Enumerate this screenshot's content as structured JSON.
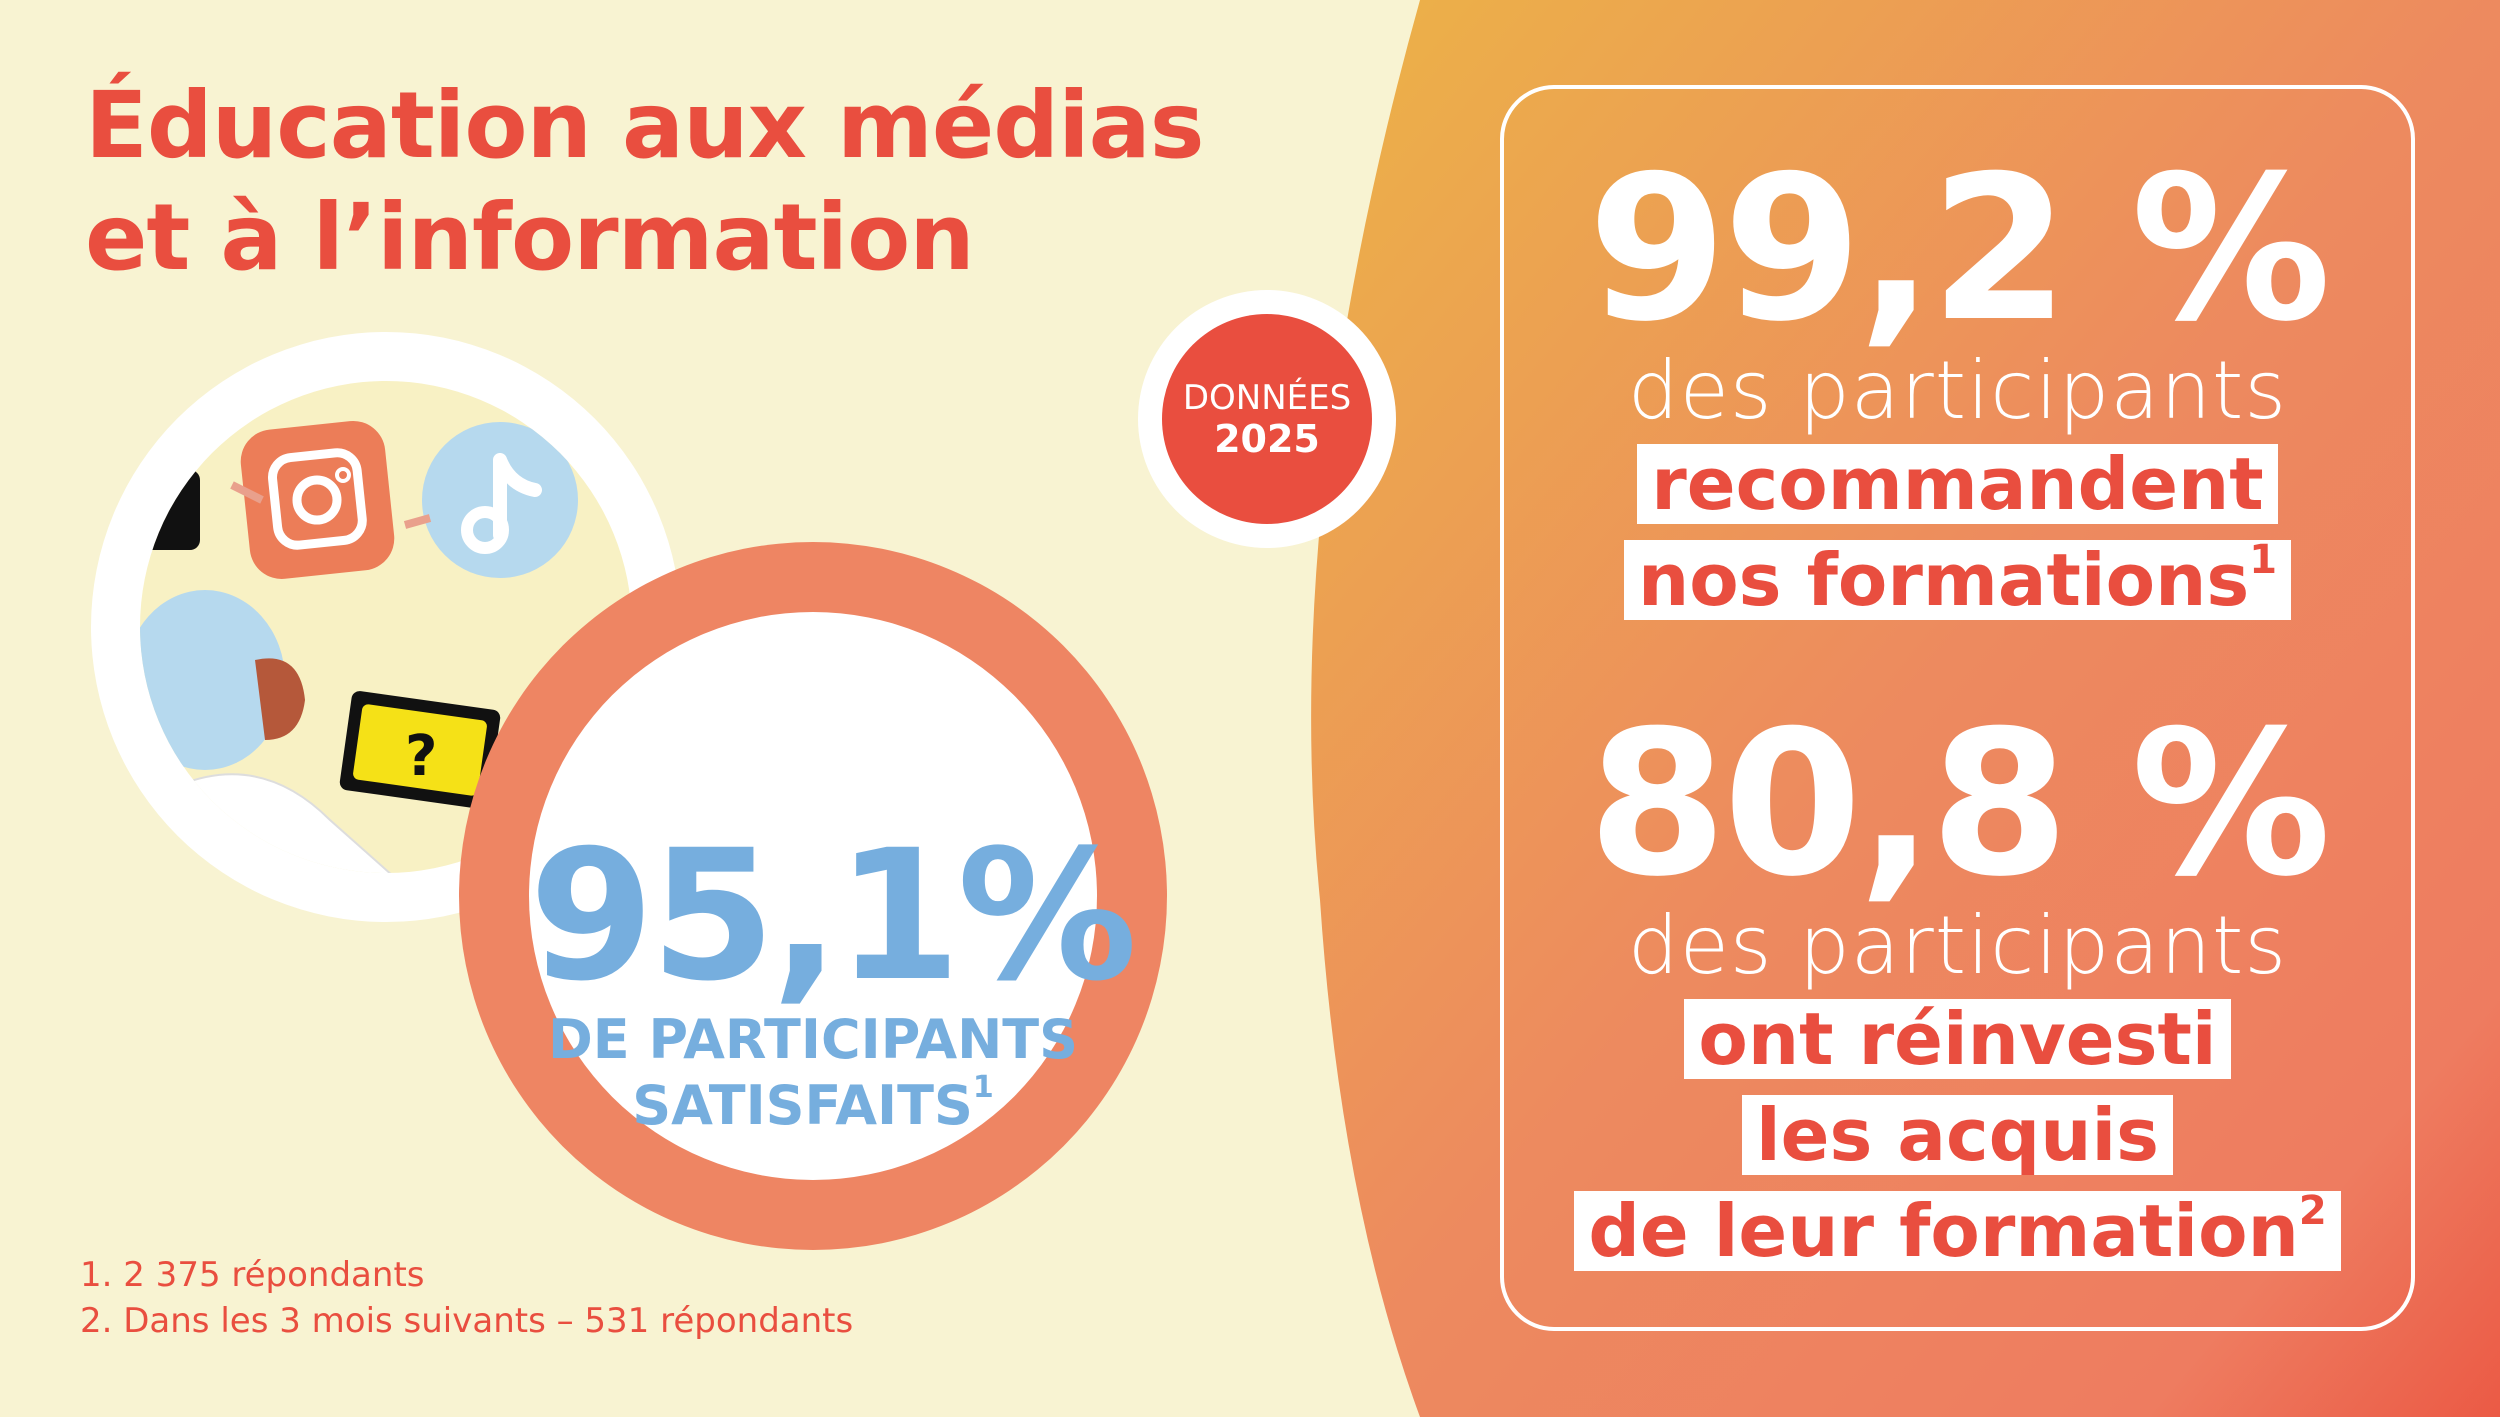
{
  "title": {
    "line1": "Éducation aux médias",
    "line2": "et à l’information"
  },
  "badge": {
    "label": "DONNÉES",
    "year": "2025"
  },
  "satisfaction": {
    "value": "95,1%",
    "line1": "DE PARTICIPANTS",
    "line2": "SATISFAITS",
    "note": "1"
  },
  "stat1": {
    "value": "99,2 %",
    "sub": "des participants",
    "hl1": "recommandent",
    "hl2": "nos formations",
    "note": "1"
  },
  "stat2": {
    "value": "80,8 %",
    "sub": "des participants",
    "hl1": "ont réinvesti",
    "hl2": "les acquis",
    "hl3": "de leur formation",
    "note": "2"
  },
  "footnotes": [
    "1. 2 375 répondants",
    "2. Dans les 3 mois suivants – 531 répondants"
  ],
  "illustration_icons": [
    "instagram-icon",
    "tiktok-icon",
    "person-with-tablet"
  ],
  "colors": {
    "cream": "#f8f3d2",
    "red": "#e94e3f",
    "salmon": "#ee8563",
    "blue": "#76aede",
    "gradient_top": "#ecb347",
    "gradient_bottom": "#eb5a45"
  }
}
